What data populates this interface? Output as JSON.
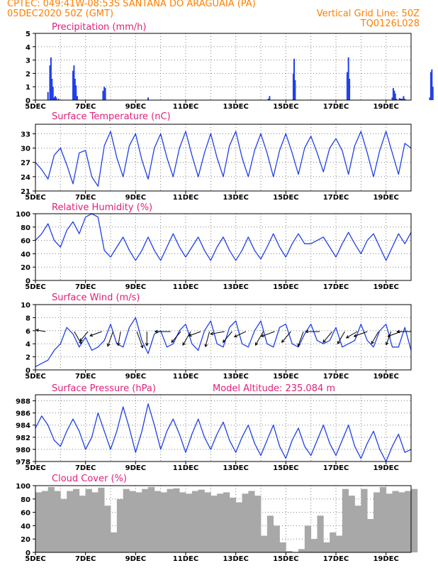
{
  "header": {
    "line1_left": "CPTEC:   049:41W-08:53S  SANTANA DO ARAGUAIA (PA)",
    "line2_left": "05DEC2020 50Z (GMT)",
    "line2_right": "Vertical Grid Line: 50Z",
    "line3_right": "TQ0126L028"
  },
  "colors": {
    "header": "#ff7f00",
    "title": "#e0207a",
    "series": "#2040e8",
    "cloud": "#a8a8a8",
    "grid": "#808080"
  },
  "x_tick_labels": [
    "5DEC",
    "7DEC",
    "9DEC",
    "11DEC",
    "13DEC",
    "15DEC",
    "17DEC",
    "19DEC"
  ],
  "chart_data": [
    {
      "id": "precip",
      "type": "bar",
      "title": "Precipitation (mm/h)",
      "xlabel": "",
      "ylabel": "",
      "ylim": [
        0,
        5
      ],
      "yticks": [
        0,
        1,
        2,
        3,
        4,
        5
      ],
      "x_unit": "days since 5DEC2020",
      "x": [
        0.5,
        0.58,
        0.62,
        0.66,
        0.7,
        0.75,
        0.79,
        0.83,
        0.92,
        1.5,
        1.54,
        1.58,
        1.62,
        1.67,
        2.7,
        2.75,
        2.79,
        4.5,
        9.3,
        9.35,
        10.3,
        10.33,
        10.37,
        12.45,
        12.5,
        12.54,
        14.25,
        14.29,
        14.33,
        14.37,
        14.41,
        14.54,
        14.58,
        14.62,
        14.66,
        14.7,
        14.75,
        15.75,
        15.79,
        15.83,
        15.87
      ],
      "values": [
        0.6,
        2.6,
        3.2,
        1.6,
        1.0,
        0.2,
        0.3,
        0.2,
        0.1,
        2.2,
        2.6,
        1.6,
        1.1,
        0.3,
        0.7,
        1.0,
        0.9,
        0.2,
        0.1,
        0.3,
        2.0,
        3.1,
        1.5,
        2.1,
        3.2,
        1.6,
        0.2,
        0.9,
        0.7,
        0.5,
        0.1,
        0.15,
        0.1,
        0.1,
        0.1,
        0.3,
        0.1,
        0.2,
        2.1,
        2.3,
        1.0
      ],
      "grid": true
    },
    {
      "id": "temp",
      "type": "line",
      "title": "Surface Temperature (nC)",
      "xlabel": "",
      "ylabel": "",
      "ylim": [
        21,
        35
      ],
      "yticks": [
        21,
        24,
        27,
        30,
        33
      ],
      "x_unit": "days since 5DEC2020",
      "x": [
        0.0,
        0.25,
        0.5,
        0.75,
        1.0,
        1.25,
        1.5,
        1.75,
        2.0,
        2.25,
        2.5,
        2.75,
        3.0,
        3.25,
        3.5,
        3.75,
        4.0,
        4.25,
        4.5,
        4.75,
        5.0,
        5.25,
        5.5,
        5.75,
        6.0,
        6.25,
        6.5,
        6.75,
        7.0,
        7.25,
        7.5,
        7.75,
        8.0,
        8.25,
        8.5,
        8.75,
        9.0,
        9.25,
        9.5,
        9.75,
        10.0,
        10.25,
        10.5,
        10.75,
        11.0,
        11.25,
        11.5,
        11.75,
        12.0,
        12.25,
        12.5,
        12.75,
        13.0,
        13.25,
        13.5,
        13.75,
        14.0,
        14.25,
        14.5,
        14.75,
        15.0
      ],
      "values": [
        27.0,
        25.5,
        23.5,
        28.5,
        30.0,
        26.5,
        22.5,
        29.0,
        29.5,
        24.0,
        22.0,
        30.5,
        33.5,
        28.0,
        24.0,
        30.5,
        33.0,
        27.5,
        23.5,
        30.0,
        33.0,
        28.0,
        24.0,
        30.0,
        33.5,
        28.5,
        24.0,
        29.0,
        33.0,
        28.0,
        24.0,
        30.5,
        33.5,
        28.0,
        24.0,
        29.5,
        33.0,
        29.0,
        24.0,
        29.5,
        33.0,
        29.0,
        24.5,
        30.0,
        32.5,
        29.0,
        25.0,
        30.0,
        32.0,
        29.5,
        24.5,
        30.5,
        33.5,
        29.0,
        24.0,
        29.5,
        33.5,
        29.0,
        24.5,
        31.0,
        30.0
      ],
      "grid": true
    },
    {
      "id": "rh",
      "type": "line",
      "title": "Relative Humidity (%)",
      "xlabel": "",
      "ylabel": "",
      "ylim": [
        0,
        100
      ],
      "yticks": [
        0,
        20,
        40,
        60,
        80,
        100
      ],
      "x_unit": "days since 5DEC2020",
      "x": [
        0.0,
        0.25,
        0.5,
        0.75,
        1.0,
        1.25,
        1.5,
        1.75,
        2.0,
        2.25,
        2.5,
        2.75,
        3.0,
        3.25,
        3.5,
        3.75,
        4.0,
        4.25,
        4.5,
        4.75,
        5.0,
        5.25,
        5.5,
        5.75,
        6.0,
        6.25,
        6.5,
        6.75,
        7.0,
        7.25,
        7.5,
        7.75,
        8.0,
        8.25,
        8.5,
        8.75,
        9.0,
        9.25,
        9.5,
        9.75,
        10.0,
        10.25,
        10.5,
        10.75,
        11.0,
        11.25,
        11.5,
        11.75,
        12.0,
        12.25,
        12.5,
        12.75,
        13.0,
        13.25,
        13.5,
        13.75,
        14.0,
        14.25,
        14.5,
        14.75,
        15.0
      ],
      "values": [
        60,
        70,
        85,
        60,
        50,
        75,
        88,
        70,
        95,
        100,
        95,
        45,
        35,
        50,
        65,
        45,
        30,
        45,
        65,
        45,
        30,
        50,
        70,
        50,
        35,
        50,
        65,
        45,
        30,
        50,
        65,
        45,
        30,
        45,
        65,
        45,
        32,
        50,
        70,
        50,
        35,
        55,
        70,
        55,
        55,
        60,
        65,
        50,
        35,
        55,
        72,
        55,
        40,
        60,
        70,
        50,
        30,
        50,
        70,
        55,
        72
      ],
      "grid": true
    },
    {
      "id": "wind",
      "type": "line",
      "title": "Surface Wind (m/s)",
      "xlabel": "",
      "ylabel": "",
      "ylim": [
        0,
        10
      ],
      "yticks": [
        0,
        2,
        4,
        6,
        8,
        10
      ],
      "x_unit": "days since 5DEC2020",
      "x": [
        0.0,
        0.25,
        0.5,
        0.75,
        1.0,
        1.25,
        1.5,
        1.75,
        2.0,
        2.25,
        2.5,
        2.75,
        3.0,
        3.25,
        3.5,
        3.75,
        4.0,
        4.25,
        4.5,
        4.75,
        5.0,
        5.25,
        5.5,
        5.75,
        6.0,
        6.25,
        6.5,
        6.75,
        7.0,
        7.25,
        7.5,
        7.75,
        8.0,
        8.25,
        8.5,
        8.75,
        9.0,
        9.25,
        9.5,
        9.75,
        10.0,
        10.25,
        10.5,
        10.75,
        11.0,
        11.25,
        11.5,
        11.75,
        12.0,
        12.25,
        12.5,
        12.75,
        13.0,
        13.25,
        13.5,
        13.75,
        14.0,
        14.25,
        14.5,
        14.75,
        15.0
      ],
      "values": [
        0.5,
        1.0,
        1.5,
        3.0,
        4.0,
        6.5,
        5.5,
        3.5,
        5.0,
        3.0,
        3.5,
        4.5,
        7.0,
        4.0,
        3.5,
        6.5,
        8.0,
        4.5,
        2.5,
        5.5,
        6.0,
        3.5,
        4.0,
        6.0,
        7.0,
        4.0,
        3.0,
        6.0,
        7.5,
        4.0,
        3.5,
        6.5,
        7.5,
        4.0,
        3.5,
        6.0,
        7.5,
        4.0,
        3.5,
        6.5,
        7.0,
        4.0,
        3.5,
        5.5,
        7.0,
        4.5,
        4.0,
        4.5,
        6.5,
        3.5,
        4.0,
        4.5,
        7.0,
        4.5,
        3.5,
        6.0,
        7.0,
        3.5,
        3.5,
        6.5,
        3.0
      ],
      "arrow_x": [
        0.4,
        1.55,
        2.1,
        2.65,
        3.1,
        3.4,
        4.05,
        4.45,
        5.4,
        5.8,
        6.2,
        6.6,
        6.95,
        7.55,
        7.85,
        8.4,
        9.1,
        9.55,
        10.2,
        10.7,
        11.35,
        11.85,
        12.35,
        12.85,
        13.25,
        13.7,
        14.2,
        14.6,
        15.0
      ],
      "arrow_angle": [
        170,
        300,
        230,
        200,
        250,
        260,
        290,
        270,
        180,
        230,
        240,
        200,
        255,
        190,
        230,
        205,
        240,
        200,
        230,
        250,
        180,
        230,
        240,
        210,
        200,
        240,
        250,
        200,
        180
      ],
      "arrow_len": [
        0.6,
        0.9,
        0.8,
        0.8,
        1.0,
        0.9,
        1.1,
        0.9,
        1.0,
        0.9,
        1.0,
        0.8,
        1.0,
        0.9,
        0.9,
        0.8,
        1.0,
        0.9,
        0.9,
        1.0,
        0.9,
        0.9,
        0.9,
        0.8,
        0.9,
        0.9,
        0.9,
        0.9,
        0.9
      ],
      "grid": true
    },
    {
      "id": "press",
      "type": "line",
      "title": "Surface Pressure (hPa)",
      "subtitle": "Model Altitude: 235.084 m",
      "xlabel": "",
      "ylabel": "",
      "ylim": [
        978,
        989
      ],
      "yticks": [
        978,
        980,
        982,
        984,
        986,
        988
      ],
      "x_unit": "days since 5DEC2020",
      "x": [
        0.0,
        0.25,
        0.5,
        0.75,
        1.0,
        1.25,
        1.5,
        1.75,
        2.0,
        2.25,
        2.5,
        2.75,
        3.0,
        3.25,
        3.5,
        3.75,
        4.0,
        4.25,
        4.5,
        4.75,
        5.0,
        5.25,
        5.5,
        5.75,
        6.0,
        6.25,
        6.5,
        6.75,
        7.0,
        7.25,
        7.5,
        7.75,
        8.0,
        8.25,
        8.5,
        8.75,
        9.0,
        9.25,
        9.5,
        9.75,
        10.0,
        10.25,
        10.5,
        10.75,
        11.0,
        11.25,
        11.5,
        11.75,
        12.0,
        12.25,
        12.5,
        12.75,
        13.0,
        13.25,
        13.5,
        13.75,
        14.0,
        14.25,
        14.5,
        14.75,
        15.0
      ],
      "values": [
        983.5,
        985.5,
        984.0,
        981.5,
        980.5,
        983.0,
        985.0,
        983.0,
        980.0,
        982.0,
        986.0,
        983.0,
        980.0,
        983.0,
        987.0,
        983.5,
        979.5,
        983.0,
        987.5,
        984.0,
        980.0,
        983.0,
        985.0,
        982.5,
        979.5,
        982.5,
        985.0,
        982.0,
        980.0,
        982.5,
        984.5,
        981.5,
        979.5,
        982.0,
        984.0,
        981.0,
        979.0,
        981.5,
        984.0,
        980.5,
        978.5,
        981.5,
        983.5,
        980.5,
        979.0,
        981.5,
        984.0,
        981.0,
        979.0,
        981.5,
        984.0,
        980.5,
        978.5,
        981.0,
        983.0,
        980.0,
        978.0,
        980.5,
        982.5,
        979.5,
        980.0
      ],
      "grid": true
    },
    {
      "id": "cloud",
      "type": "area",
      "title": "Cloud Cover (%)",
      "xlabel": "",
      "ylabel": "",
      "ylim": [
        0,
        100
      ],
      "yticks": [
        0,
        20,
        40,
        60,
        80,
        100
      ],
      "x_unit": "days since 5DEC2020",
      "x": [
        0.0,
        0.25,
        0.5,
        0.75,
        1.0,
        1.25,
        1.5,
        1.75,
        2.0,
        2.25,
        2.5,
        2.75,
        3.0,
        3.25,
        3.5,
        3.75,
        4.0,
        4.25,
        4.5,
        4.75,
        5.0,
        5.25,
        5.5,
        5.75,
        6.0,
        6.25,
        6.5,
        6.75,
        7.0,
        7.25,
        7.5,
        7.75,
        8.0,
        8.25,
        8.5,
        8.75,
        9.0,
        9.25,
        9.5,
        9.75,
        10.0,
        10.25,
        10.5,
        10.75,
        11.0,
        11.25,
        11.5,
        11.75,
        12.0,
        12.25,
        12.5,
        12.75,
        13.0,
        13.25,
        13.5,
        13.75,
        14.0,
        14.25,
        14.5,
        14.75,
        15.0
      ],
      "values": [
        90,
        92,
        98,
        92,
        80,
        92,
        95,
        85,
        95,
        90,
        97,
        70,
        30,
        80,
        95,
        92,
        90,
        95,
        98,
        92,
        90,
        95,
        96,
        90,
        88,
        92,
        94,
        90,
        85,
        88,
        90,
        82,
        75,
        88,
        92,
        85,
        25,
        55,
        40,
        15,
        2,
        0,
        5,
        40,
        20,
        55,
        15,
        30,
        25,
        95,
        85,
        70,
        95,
        50,
        90,
        98,
        88,
        92,
        90,
        92,
        95
      ],
      "grid": true
    }
  ]
}
